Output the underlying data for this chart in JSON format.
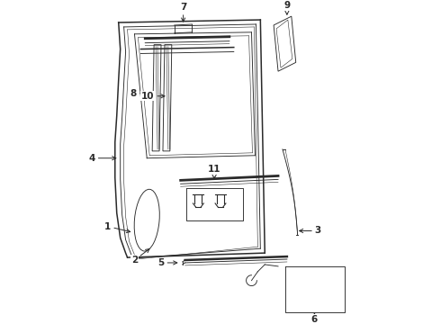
{
  "bg_color": "#ffffff",
  "line_color": "#2a2a2a",
  "lw_main": 1.1,
  "lw_thin": 0.65,
  "lw_xtra": 0.4,
  "figsize": [
    4.9,
    3.6
  ],
  "dpi": 100
}
